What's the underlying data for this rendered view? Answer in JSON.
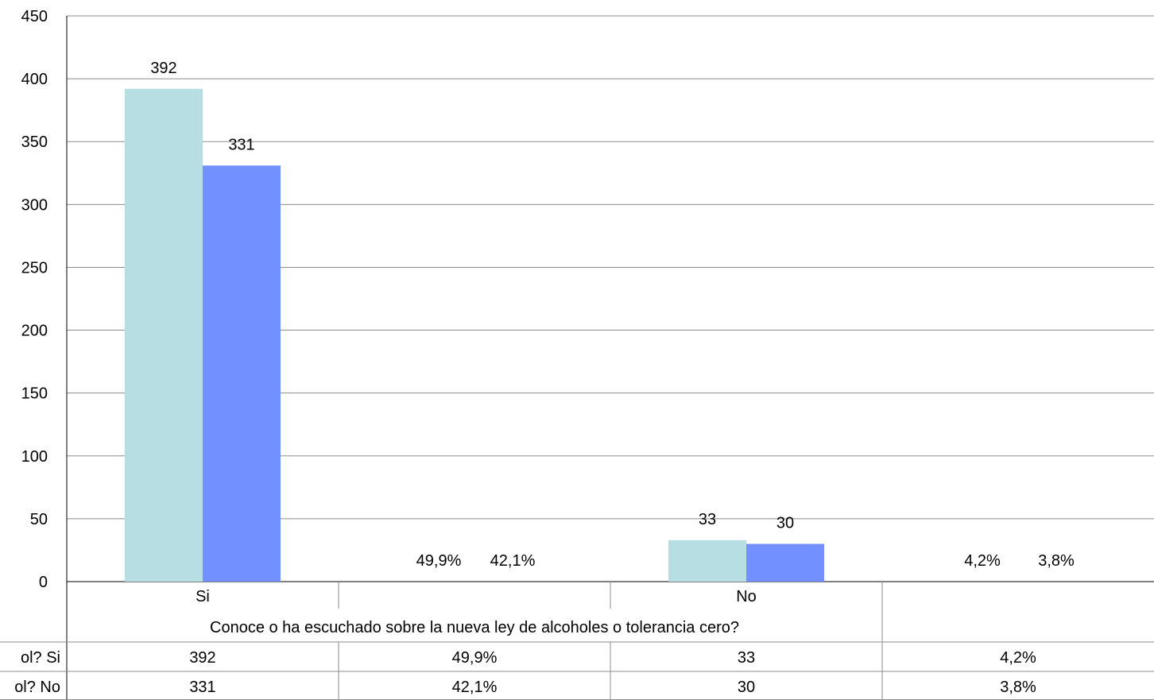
{
  "chart_data": {
    "type": "bar",
    "categories": [
      "Si",
      "",
      "No",
      ""
    ],
    "category_group_label": "Conoce o ha escuchado sobre la nueva ley de alcoholes o tolerancia cero?",
    "series": [
      {
        "name": "ol? Si",
        "color": "#b7dfe3",
        "values": [
          392,
          null,
          33,
          null
        ],
        "table_values": [
          "392",
          "49,9%",
          "33",
          "4,2%"
        ]
      },
      {
        "name": "ol? No",
        "color": "#7290ff",
        "values": [
          331,
          null,
          30,
          null
        ],
        "table_values": [
          "331",
          "42,1%",
          "30",
          "3,8%"
        ]
      }
    ],
    "percent_labels": [
      {
        "category_index": 1,
        "values": [
          "49,9%",
          "42,1%"
        ]
      },
      {
        "category_index": 3,
        "values": [
          "4,2%",
          "3,8%"
        ]
      }
    ],
    "yticks": [
      "0",
      "50",
      "100",
      "150",
      "200",
      "250",
      "300",
      "350",
      "400",
      "450"
    ],
    "ylim": [
      0,
      450
    ],
    "grid": true,
    "legend": "data-table"
  }
}
